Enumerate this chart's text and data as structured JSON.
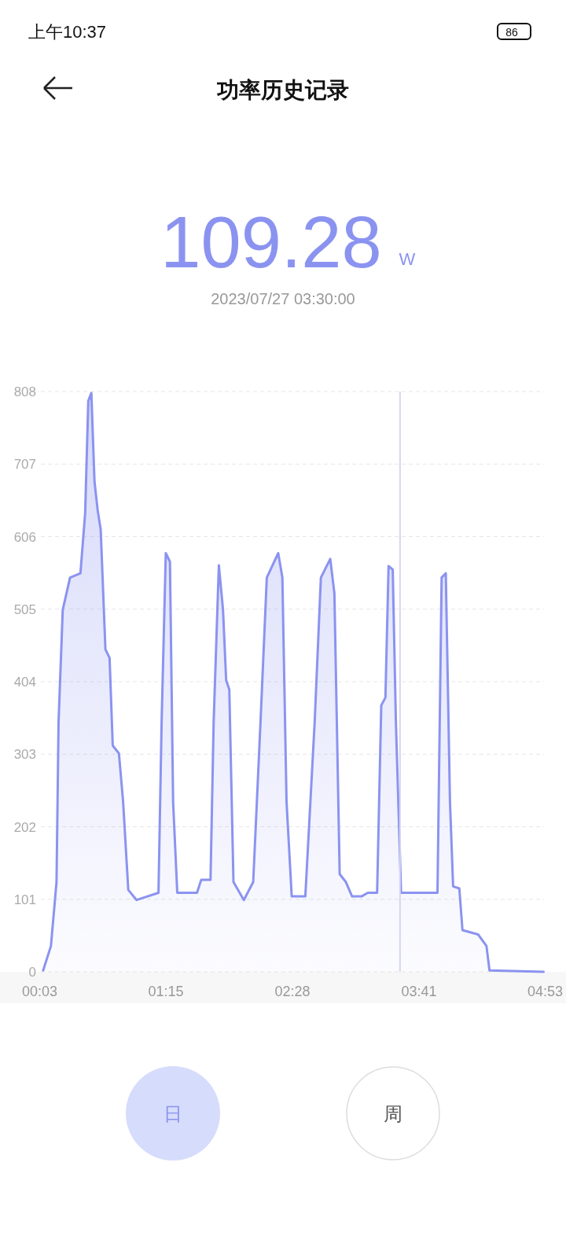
{
  "chart_data": {
    "type": "area",
    "title": "功率历史记录",
    "color": "#8b93f0",
    "x": [
      0.072,
      0.147,
      0.2,
      0.22,
      0.26,
      0.33,
      0.43,
      0.475,
      0.505,
      0.535,
      0.565,
      0.595,
      0.625,
      0.67,
      0.71,
      0.74,
      0.8,
      0.84,
      0.89,
      0.97,
      1.18,
      1.21,
      1.25,
      1.29,
      1.32,
      1.36,
      1.55,
      1.59,
      1.68,
      1.71,
      1.76,
      1.8,
      1.83,
      1.86,
      1.9,
      2.0,
      2.09,
      2.16,
      2.22,
      2.33,
      2.37,
      2.41,
      2.46,
      2.59,
      2.68,
      2.74,
      2.83,
      2.87,
      2.92,
      2.98,
      3.04,
      3.13,
      3.19,
      3.28,
      3.32,
      3.36,
      3.39,
      3.43,
      3.46,
      3.51,
      3.86,
      3.9,
      3.94,
      3.98,
      4.01,
      4.07,
      4.1,
      4.25,
      4.33,
      4.36,
      4.88
    ],
    "values": [
      2,
      36,
      125,
      348,
      504,
      549,
      555,
      638,
      795,
      806,
      683,
      643,
      616,
      449,
      437,
      315,
      304,
      237,
      114,
      100,
      110,
      348,
      583,
      571,
      237,
      110,
      110,
      128,
      128,
      348,
      566,
      504,
      406,
      393,
      125,
      100,
      125,
      348,
      549,
      583,
      549,
      237,
      105,
      105,
      348,
      549,
      575,
      527,
      136,
      125,
      105,
      105,
      110,
      110,
      371,
      382,
      565,
      560,
      348,
      110,
      110,
      549,
      555,
      237,
      119,
      116,
      58,
      52,
      36,
      2,
      0
    ],
    "xlim": [
      0.05,
      4.883
    ],
    "xticks": [
      {
        "value": 0.05,
        "label": "00:03"
      },
      {
        "value": 1.25,
        "label": "01:15"
      },
      {
        "value": 2.467,
        "label": "02:28"
      },
      {
        "value": 3.683,
        "label": "03:41"
      },
      {
        "value": 4.883,
        "label": "04:53"
      }
    ],
    "ylim": [
      0,
      808
    ],
    "yticks": [
      0,
      101,
      202,
      303,
      404,
      505,
      606,
      707,
      808
    ],
    "grid": "y",
    "ref_lines": [
      {
        "axis": "x",
        "value": 3.5,
        "label": null,
        "color": "#d6d6ee"
      }
    ],
    "annotations": [
      "109.28",
      "W",
      "2023/07/27 03:30:00",
      "日",
      "周",
      "上午10:37",
      "86"
    ]
  }
}
